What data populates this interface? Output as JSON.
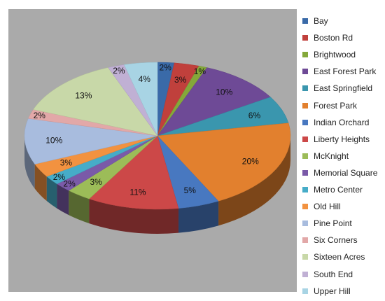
{
  "chart_data": {
    "type": "pie",
    "title": "",
    "legend_position": "right",
    "categories": [
      "Bay",
      "Boston Rd",
      "Brightwood",
      "East Forest Park",
      "East Springfield",
      "Forest Park",
      "Indian Orchard",
      "Liberty Heights",
      "McKnight",
      "Memorial Square",
      "Metro Center",
      "Old Hill",
      "Pine Point",
      "Six Corners",
      "Sixteen Acres",
      "South End",
      "Upper Hill"
    ],
    "values": [
      2,
      3,
      1,
      10,
      6,
      20,
      5,
      11,
      3,
      2,
      2,
      3,
      10,
      2,
      13,
      2,
      4
    ],
    "labels": [
      "2%",
      "3%",
      "1%",
      "10%",
      "6%",
      "20%",
      "5%",
      "11%",
      "3%",
      "2%",
      "2%",
      "3%",
      "10%",
      "2%",
      "13%",
      "2%",
      "4%"
    ],
    "colors": [
      "#3a6aa8",
      "#c0403c",
      "#84a83a",
      "#6e4a96",
      "#3a96ae",
      "#e2802e",
      "#4878c0",
      "#cc4848",
      "#9cbc58",
      "#7a5aa8",
      "#46acc8",
      "#f29240",
      "#a8bcde",
      "#e2a8a8",
      "#c8d8a8",
      "#c0b0d4",
      "#a8d4e4"
    ]
  }
}
